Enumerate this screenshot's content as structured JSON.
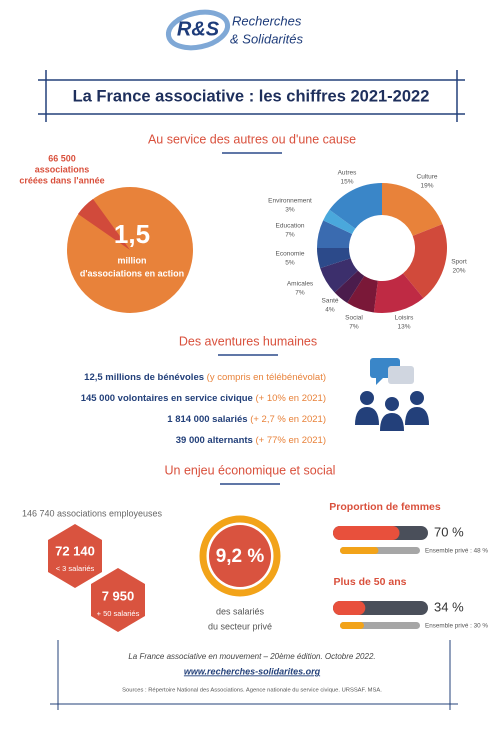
{
  "logo": {
    "mark": "R&S",
    "line1": "Recherches",
    "line2": "& Solidarités"
  },
  "title": "La France associative : les chiffres 2021-2022",
  "cause": {
    "heading": "Au service des autres ou d'une cause",
    "created": [
      "66 500",
      "associations",
      "créées dans l'année"
    ],
    "total": [
      "1,5",
      "million",
      "d'associations en action"
    ]
  },
  "chart_data": {
    "type": "pie",
    "donut": true,
    "categories": [
      "Culture",
      "Sport",
      "Loisirs",
      "Social",
      "Santé",
      "Amicales",
      "Economie",
      "Education",
      "Environnement",
      "Autres"
    ],
    "values": [
      19,
      20,
      13,
      7,
      4,
      7,
      5,
      7,
      3,
      15
    ],
    "value_labels": [
      "19%",
      "20%",
      "13%",
      "7%",
      "4%",
      "7%",
      "5%",
      "7%",
      "3%",
      "15%"
    ],
    "colors": [
      "#e8823a",
      "#d14a3b",
      "#bf2a44",
      "#7a1838",
      "#4b1c4c",
      "#3c2f6c",
      "#2c4a8a",
      "#3a6bb0",
      "#4aa8dc",
      "#3a86c8"
    ]
  },
  "humaines": {
    "heading": "Des aventures humaines",
    "rows": [
      {
        "main": "12,5 millions de bénévoles",
        "note": "(y compris en télébénévolat)"
      },
      {
        "main": "145 000 volontaires en service civique",
        "note": "(+ 10% en 2021)"
      },
      {
        "main": "1 814 000 salariés",
        "note": "(+ 2,7 % en 2021)"
      },
      {
        "main": "39 000 alternants",
        "note": "(+ 77% en 2021)"
      }
    ]
  },
  "economie": {
    "heading": "Un enjeu économique et social",
    "employers": "146 740 associations employeuses",
    "hexagons": [
      {
        "number": "72 140",
        "label": "< 3 salariés"
      },
      {
        "number": "7 950",
        "label": "+ 50 salariés"
      }
    ],
    "share": {
      "value": "9,2 %",
      "lines": [
        "des salariés",
        "du secteur privé"
      ]
    },
    "bars": [
      {
        "title": "Proportion de femmes",
        "value": 70,
        "value_label": "70 %",
        "reference": 48,
        "reference_label": "Ensemble privé : 48 %"
      },
      {
        "title": "Plus de 50 ans",
        "value": 34,
        "value_label": "34 %",
        "reference": 30,
        "reference_label": "Ensemble privé : 30 %"
      }
    ]
  },
  "footer": {
    "edition": "La France associative en mouvement – 20ème édition. Octobre 2022.",
    "url": "www.recherches-solidarites.org",
    "sources": "Sources : Répertoire National des Associations. Agence nationale du service civique. URSSAF. MSA."
  }
}
